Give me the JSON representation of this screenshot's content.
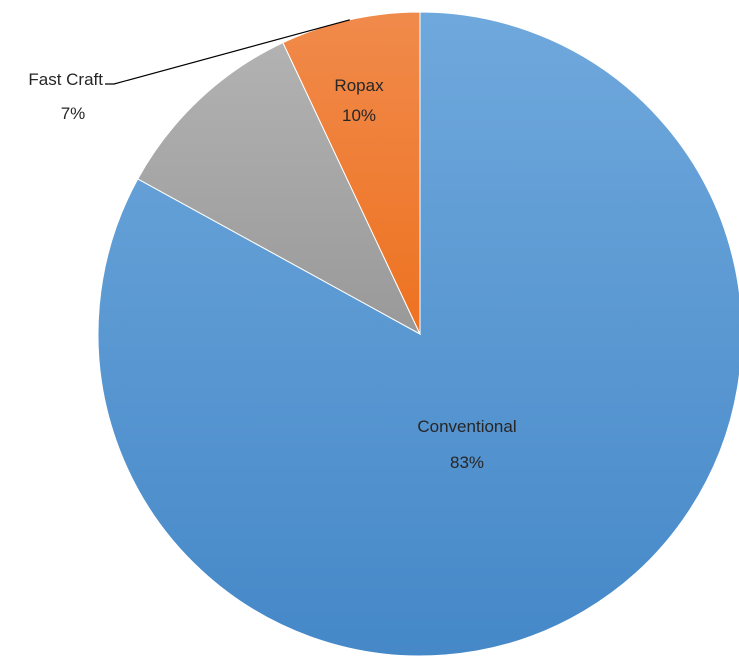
{
  "chart_data": {
    "type": "pie",
    "categories": [
      "Conventional",
      "Ropax",
      "Fast Craft"
    ],
    "values": [
      83,
      10,
      7
    ],
    "value_labels": [
      "83%",
      "10%",
      "7%"
    ],
    "colors": {
      "Conventional": "#5B9BD5",
      "Ropax": "#A5A5A5",
      "Fast Craft": "#ED7D31"
    },
    "start_angle": "12 o'clock",
    "direction": "clockwise",
    "legend": "none",
    "title": ""
  }
}
